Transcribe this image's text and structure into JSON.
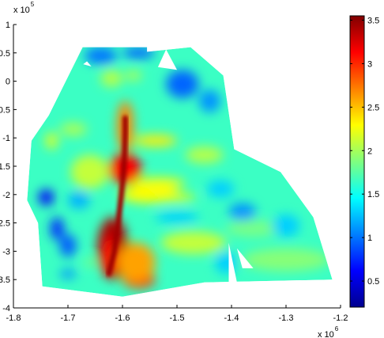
{
  "chart_data": {
    "type": "heatmap",
    "title": "",
    "xlabel": "",
    "ylabel": "",
    "x_exponent": {
      "base": "x 10",
      "power": "6"
    },
    "y_exponent": {
      "base": "x 10",
      "power": "5"
    },
    "xlim": [
      -1.8,
      -1.2
    ],
    "ylim": [
      -4,
      1
    ],
    "x_ticks": [
      -1.8,
      -1.7,
      -1.6,
      -1.5,
      -1.4,
      -1.3,
      -1.2
    ],
    "x_tick_labels": [
      "-1.8",
      "-1.7",
      "-1.6",
      "-1.5",
      "-1.4",
      "-1.3",
      "-1.2"
    ],
    "y_ticks": [
      1,
      0.5,
      0,
      -0.5,
      -1,
      -1.5,
      -2,
      -2.5,
      -3,
      -3.5,
      -4
    ],
    "y_tick_labels": [
      "1",
      "0.5",
      "0",
      "-0.5",
      "-1",
      "-1.5",
      "-2",
      "-2.5",
      "-3",
      "-3.5",
      "-4"
    ],
    "colorbar": {
      "colormap": "jet",
      "range": [
        0.2,
        3.55
      ],
      "ticks": [
        3.5,
        3,
        2.5,
        2,
        1.5,
        1,
        0.5
      ],
      "tick_labels": [
        "3.5",
        "3",
        "2.5",
        "2",
        "1.5",
        "1",
        "0.5"
      ]
    },
    "background_value": 1.65,
    "domain_polygon": [
      [
        -1.673,
        0.6
      ],
      [
        -1.555,
        0.6
      ],
      [
        -1.555,
        0.52
      ],
      [
        -1.475,
        0.6
      ],
      [
        -1.415,
        0.1
      ],
      [
        -1.395,
        -1.2
      ],
      [
        -1.31,
        -1.6
      ],
      [
        -1.25,
        -2.4
      ],
      [
        -1.215,
        -3.5
      ],
      [
        -1.45,
        -3.55
      ],
      [
        -1.6,
        -3.8
      ],
      [
        -1.747,
        -3.62
      ],
      [
        -1.755,
        -2.5
      ],
      [
        -1.775,
        -2.1
      ],
      [
        -1.767,
        -1.05
      ],
      [
        -1.735,
        -0.6
      ]
    ],
    "notches": [
      [
        [
          -1.52,
          0.56
        ],
        [
          -1.5,
          0.2
        ],
        [
          -1.535,
          0.25
        ]
      ],
      [
        [
          -1.405,
          -2.85
        ],
        [
          -1.39,
          -3.55
        ],
        [
          -1.405,
          -3.6
        ]
      ],
      [
        [
          -1.39,
          -2.95
        ],
        [
          -1.36,
          -3.3
        ],
        [
          -1.38,
          -3.3
        ]
      ],
      [
        [
          -1.665,
          0.35
        ],
        [
          -1.657,
          0.26
        ],
        [
          -1.672,
          0.3
        ]
      ]
    ],
    "features": [
      {
        "kind": "channel",
        "value": 3.45,
        "width": 0.01,
        "path": [
          [
            -1.625,
            -3.4
          ],
          [
            -1.615,
            -3.0
          ],
          [
            -1.608,
            -2.5
          ],
          [
            -1.602,
            -2.0
          ],
          [
            -1.598,
            -1.6
          ],
          [
            -1.596,
            -1.25
          ],
          [
            -1.595,
            -0.9
          ],
          [
            -1.595,
            -0.65
          ]
        ]
      },
      {
        "kind": "blob",
        "x": -1.595,
        "y": -1.55,
        "rx": 0.03,
        "ry": 0.28,
        "value": 3.15
      },
      {
        "kind": "blob",
        "x": -1.618,
        "y": -2.95,
        "rx": 0.028,
        "ry": 0.55,
        "value": 3.4
      },
      {
        "kind": "blob",
        "x": -1.595,
        "y": -0.8,
        "rx": 0.015,
        "ry": 0.45,
        "value": 2.7
      },
      {
        "kind": "blob",
        "x": -1.57,
        "y": -3.5,
        "rx": 0.03,
        "ry": 0.15,
        "value": 3.1
      },
      {
        "kind": "blob",
        "x": -1.625,
        "y": -3.1,
        "rx": 0.012,
        "ry": 0.35,
        "value": 3.1
      },
      {
        "kind": "blob",
        "x": -1.575,
        "y": -3.2,
        "rx": 0.035,
        "ry": 0.35,
        "value": 2.6
      },
      {
        "kind": "blob",
        "x": -1.54,
        "y": -1.05,
        "rx": 0.04,
        "ry": 0.1,
        "value": 2.35
      },
      {
        "kind": "blob",
        "x": -1.55,
        "y": -2.0,
        "rx": 0.055,
        "ry": 0.15,
        "value": 2.3
      },
      {
        "kind": "blob",
        "x": -1.535,
        "y": -1.8,
        "rx": 0.05,
        "ry": 0.1,
        "value": 2.25
      },
      {
        "kind": "blob",
        "x": -1.66,
        "y": -1.6,
        "rx": 0.035,
        "ry": 0.3,
        "value": 2.1
      },
      {
        "kind": "blob",
        "x": -1.45,
        "y": -1.3,
        "rx": 0.035,
        "ry": 0.15,
        "value": 2.05
      },
      {
        "kind": "blob",
        "x": -1.47,
        "y": -2.85,
        "rx": 0.06,
        "ry": 0.2,
        "value": 2.1
      },
      {
        "kind": "blob",
        "x": -1.62,
        "y": 0.05,
        "rx": 0.02,
        "ry": 0.15,
        "value": 2.05
      },
      {
        "kind": "blob",
        "x": -1.58,
        "y": 0.1,
        "rx": 0.015,
        "ry": 0.1,
        "value": 2.0
      },
      {
        "kind": "blob",
        "x": -1.69,
        "y": -0.85,
        "rx": 0.025,
        "ry": 0.12,
        "value": 2.0
      },
      {
        "kind": "blob",
        "x": -1.73,
        "y": -1.05,
        "rx": 0.012,
        "ry": 0.15,
        "value": 2.15
      },
      {
        "kind": "blob",
        "x": -1.51,
        "y": -2.05,
        "rx": 0.045,
        "ry": 0.07,
        "value": 2.25
      },
      {
        "kind": "blob",
        "x": -1.3,
        "y": -3.15,
        "rx": 0.08,
        "ry": 0.2,
        "value": 1.9
      },
      {
        "kind": "blob",
        "x": -1.36,
        "y": -2.6,
        "rx": 0.05,
        "ry": 0.15,
        "value": 1.85
      },
      {
        "kind": "blob",
        "x": -1.66,
        "y": -3.2,
        "rx": 0.012,
        "ry": 0.06,
        "value": 1.9
      },
      {
        "kind": "blob",
        "x": -1.57,
        "y": 0.5,
        "rx": 0.03,
        "ry": 0.1,
        "value": 0.95
      },
      {
        "kind": "blob",
        "x": -1.64,
        "y": 0.45,
        "rx": 0.03,
        "ry": 0.15,
        "value": 1.0
      },
      {
        "kind": "blob",
        "x": -1.49,
        "y": -0.05,
        "rx": 0.03,
        "ry": 0.25,
        "value": 0.95
      },
      {
        "kind": "blob",
        "x": -1.44,
        "y": -0.35,
        "rx": 0.02,
        "ry": 0.2,
        "value": 1.1
      },
      {
        "kind": "blob",
        "x": -1.74,
        "y": -2.05,
        "rx": 0.014,
        "ry": 0.14,
        "value": 0.6
      },
      {
        "kind": "blob",
        "x": -1.72,
        "y": -2.6,
        "rx": 0.012,
        "ry": 0.2,
        "value": 0.75
      },
      {
        "kind": "blob",
        "x": -1.7,
        "y": -2.9,
        "rx": 0.015,
        "ry": 0.2,
        "value": 0.9
      },
      {
        "kind": "blob",
        "x": -1.38,
        "y": -2.3,
        "rx": 0.025,
        "ry": 0.15,
        "value": 1.1
      },
      {
        "kind": "blob",
        "x": -1.42,
        "y": -1.9,
        "rx": 0.025,
        "ry": 0.15,
        "value": 1.3
      },
      {
        "kind": "blob",
        "x": -1.3,
        "y": -2.55,
        "rx": 0.025,
        "ry": 0.2,
        "value": 1.3
      },
      {
        "kind": "blob",
        "x": -1.5,
        "y": -2.4,
        "rx": 0.04,
        "ry": 0.1,
        "value": 1.3
      },
      {
        "kind": "blob",
        "x": -1.68,
        "y": -2.1,
        "rx": 0.02,
        "ry": 0.15,
        "value": 1.2
      },
      {
        "kind": "blob",
        "x": -1.7,
        "y": -3.4,
        "rx": 0.015,
        "ry": 0.08,
        "value": 1.1
      },
      {
        "kind": "blob",
        "x": -1.41,
        "y": -3.2,
        "rx": 0.02,
        "ry": 0.2,
        "value": 1.3
      }
    ]
  }
}
